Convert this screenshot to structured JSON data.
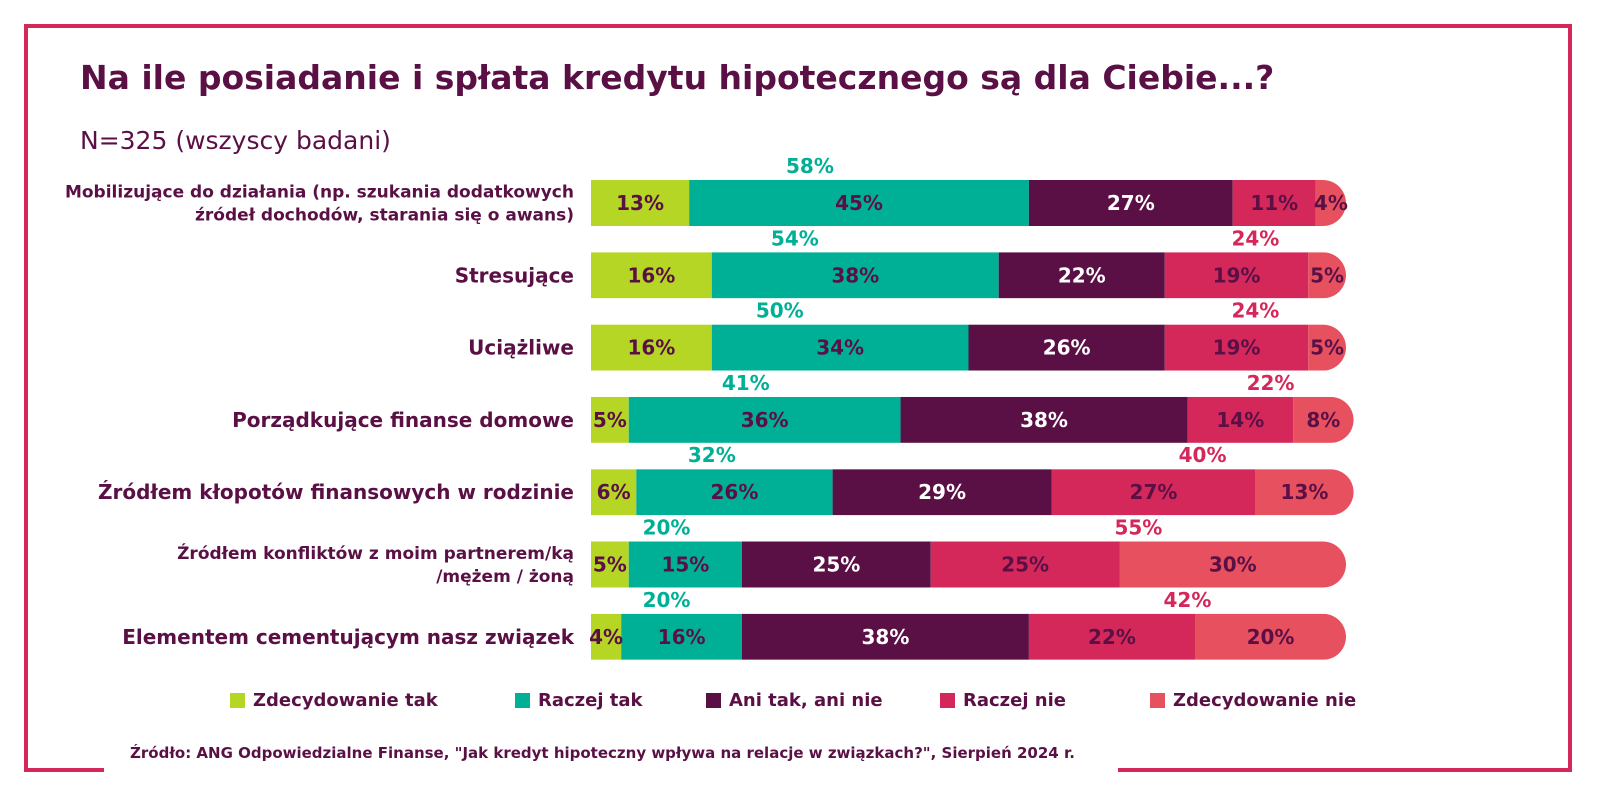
{
  "header": {
    "title": "Na ile posiadanie i spłata kredytu hipotecznego są dla Ciebie...?",
    "subtitle": "N=325 (wszyscy badani)"
  },
  "source": "Źródło: ANG Odpowiedzialne Finanse, \"Jak kredyt hipoteczny wpływa na relacje w związkach?\", Sierpień 2024 r.",
  "colors": {
    "zdecydowanie_tak": "#b5d624",
    "raczej_tak": "#00b096",
    "ani_tak_ani_nie": "#5a1045",
    "raczej_nie": "#d4285a",
    "zdecydowanie_nie": "#e7505f",
    "title": "#5a1045",
    "frame": "#d4285a"
  },
  "chart_data": {
    "type": "bar",
    "orientation": "horizontal",
    "stacked": true,
    "title": "Na ile posiadanie i spłata kredytu hipotecznego są dla Ciebie...?",
    "categories": [
      [
        "Mobilizujące do działania (np. szukania dodatkowych",
        "źródeł dochodów, starania się o awans)"
      ],
      [
        "Stresujące"
      ],
      [
        "Uciążliwe"
      ],
      [
        "Porządkujące finanse domowe"
      ],
      [
        "Źródłem kłopotów finansowych w rodzinie"
      ],
      [
        "Źródłem konfliktów z moim partnerem/ką",
        "/mężem / żoną"
      ],
      [
        "Elementem cementującym nasz związek"
      ]
    ],
    "series": [
      {
        "name": "Zdecydowanie tak",
        "values": [
          13,
          16,
          16,
          5,
          6,
          5,
          4
        ]
      },
      {
        "name": "Raczej tak",
        "values": [
          45,
          38,
          34,
          36,
          26,
          15,
          16
        ]
      },
      {
        "name": "Ani tak, ani nie",
        "values": [
          27,
          22,
          26,
          38,
          29,
          25,
          38
        ]
      },
      {
        "name": "Raczej nie",
        "values": [
          11,
          19,
          19,
          14,
          27,
          25,
          22
        ]
      },
      {
        "name": "Zdecydowanie nie",
        "values": [
          4,
          5,
          5,
          8,
          13,
          30,
          20
        ]
      }
    ],
    "net_positive": [
      "58%",
      "54%",
      "50%",
      "41%",
      "32%",
      "20%",
      "20%"
    ],
    "net_negative": [
      null,
      "24%",
      "24%",
      "22%",
      "40%",
      "55%",
      "42%"
    ],
    "xlim": [
      0,
      100
    ],
    "legend": "bottom"
  }
}
